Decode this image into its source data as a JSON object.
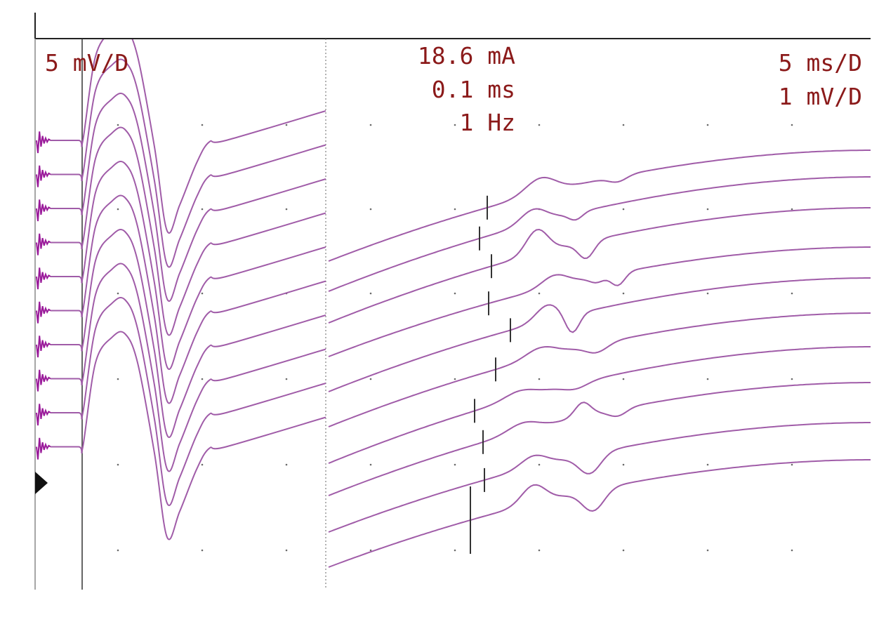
{
  "display": {
    "left_gain": "5 mV/D",
    "stimulus": {
      "intensity": "18.6 mA",
      "duration": "0.1 ms",
      "rate": "1 Hz"
    },
    "sweep": "5 ms/D",
    "right_gain": "1 mV/D"
  },
  "colors": {
    "trace": "#a05ca8",
    "stimulus_artifact": "#9a1a9a",
    "text": "#8b1a1a",
    "axis": "#222222",
    "grid_dot": "#6a6a6a",
    "marker": "#333333"
  },
  "chart_data": {
    "type": "line",
    "trace_count": 10,
    "timebase": "5 ms/D",
    "left_panel": {
      "gain": "5 mV/D",
      "description_units": "divisions",
      "waveform": {
        "x": [
          0,
          0.3,
          0.7,
          1.0,
          1.3,
          1.7,
          2.0,
          2.3,
          2.7,
          3.0,
          3.4
        ],
        "y": [
          0,
          2.6,
          3.4,
          3.5,
          2.6,
          -0.2,
          -2.8,
          -2.0,
          -0.7,
          -0.05,
          0
        ]
      }
    },
    "right_panel": {
      "gain": "1 mV/D",
      "markers_visible": true,
      "traces": [
        1,
        2,
        3,
        4,
        5,
        6,
        7,
        8,
        9,
        10
      ]
    }
  }
}
